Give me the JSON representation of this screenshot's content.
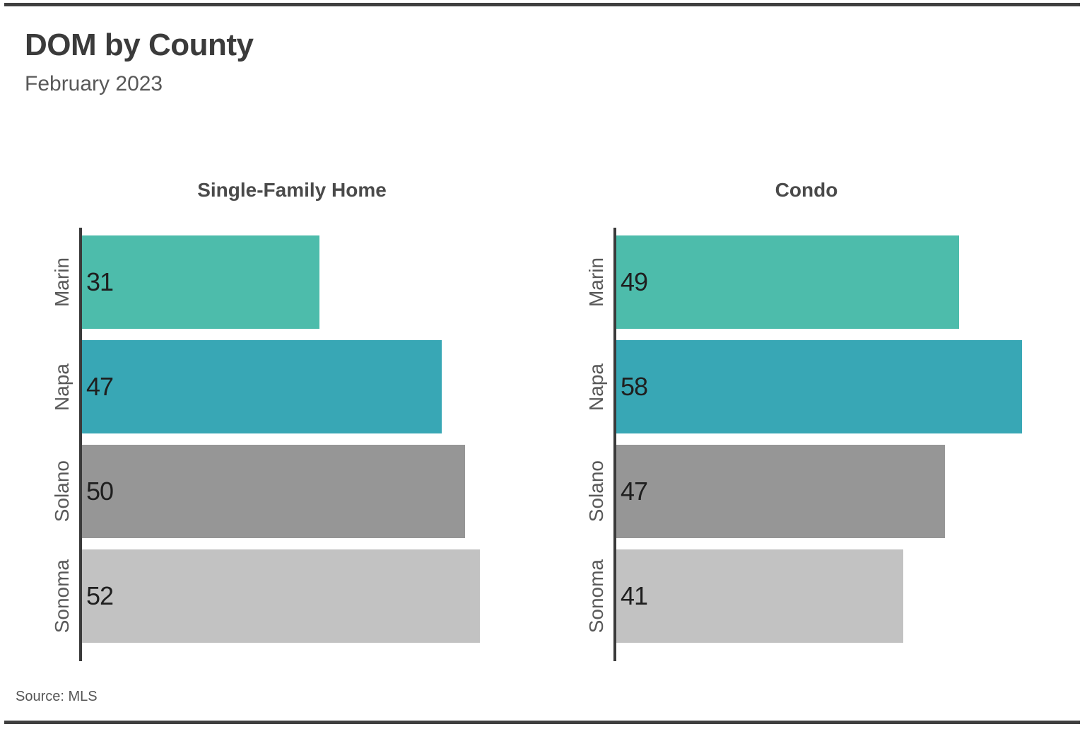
{
  "page": {
    "title": "DOM by County",
    "subtitle": "February 2023",
    "source": "Source: MLS"
  },
  "chart_data": {
    "type": "bar",
    "orientation": "horizontal",
    "title": "DOM by County",
    "subtitle": "February 2023",
    "source": "Source: MLS",
    "categories": [
      "Marin",
      "Napa",
      "Solano",
      "Sonoma"
    ],
    "series": [
      {
        "name": "Single-Family Home",
        "values": [
          31,
          47,
          50,
          52
        ]
      },
      {
        "name": "Condo",
        "values": [
          49,
          58,
          47,
          41
        ]
      }
    ],
    "xlim": [
      0,
      60
    ],
    "grid": false,
    "value_labels": true,
    "legend": "none",
    "bar_colors": [
      "#4DBCAB",
      "#38A7B5",
      "#969696",
      "#C2C2C2"
    ],
    "axis_color": "#3A3A3A",
    "rule_color": "#3F3F3F"
  }
}
